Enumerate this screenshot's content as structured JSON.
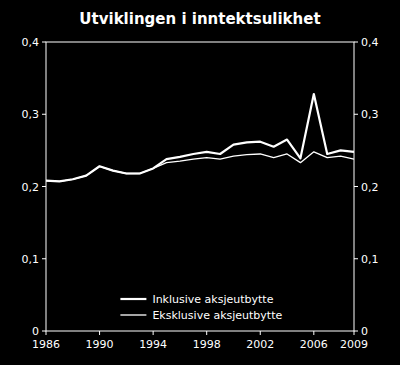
{
  "chart_data": {
    "type": "line",
    "title": "Utviklingen i inntektsulikhet",
    "x": [
      1986,
      1987,
      1988,
      1989,
      1990,
      1991,
      1992,
      1993,
      1994,
      1995,
      1996,
      1997,
      1998,
      1999,
      2000,
      2001,
      2002,
      2003,
      2004,
      2005,
      2006,
      2007,
      2008,
      2009
    ],
    "series": [
      {
        "name": "Inklusive aksjeutbytte",
        "color": "#ffffff",
        "values": [
          0.208,
          0.207,
          0.21,
          0.215,
          0.228,
          0.222,
          0.218,
          0.218,
          0.225,
          0.238,
          0.241,
          0.245,
          0.248,
          0.245,
          0.258,
          0.261,
          0.262,
          0.255,
          0.265,
          0.239,
          0.328,
          0.245,
          0.25,
          0.248
        ]
      },
      {
        "name": "Eksklusive aksjeutbytte",
        "color": "#ffffff",
        "values": [
          0.208,
          0.207,
          0.21,
          0.215,
          0.228,
          0.222,
          0.218,
          0.218,
          0.225,
          0.233,
          0.235,
          0.238,
          0.24,
          0.238,
          0.242,
          0.244,
          0.245,
          0.24,
          0.245,
          0.233,
          0.248,
          0.24,
          0.242,
          0.238
        ]
      }
    ],
    "xlim": [
      1986,
      2009
    ],
    "xticks": [
      1986,
      1990,
      1994,
      1998,
      2002,
      2006,
      2009
    ],
    "ylim": [
      0,
      0.4
    ],
    "yticks": [
      0,
      {
        "value": 0.1,
        "label": "0,1"
      },
      {
        "value": 0.2,
        "label": "0,2"
      },
      {
        "value": 0.3,
        "label": "0,3"
      },
      {
        "value": 0.4,
        "label": "0,4"
      }
    ],
    "y2lim": [
      0,
      0.4
    ],
    "y2ticks": [
      0,
      {
        "value": 0.1,
        "label": "0,1"
      },
      {
        "value": 0.2,
        "label": "0,2"
      },
      {
        "value": 0.3,
        "label": "0,3"
      },
      {
        "value": 0.4,
        "label": "0,4"
      }
    ],
    "grid": false,
    "legend": "bottom"
  }
}
